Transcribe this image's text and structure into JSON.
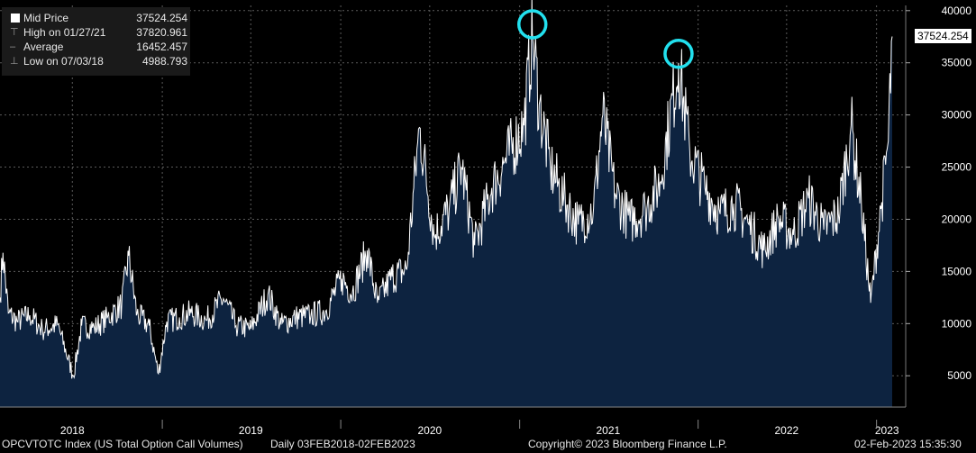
{
  "legend": {
    "rows": [
      {
        "label": "Mid Price",
        "value": "37524.254"
      },
      {
        "label": "High on 01/27/21",
        "value": "37820.961"
      },
      {
        "label": "Average",
        "value": "16452.457"
      },
      {
        "label": "Low on 07/03/18",
        "value": "4988.793"
      }
    ]
  },
  "last_value_label": "37524.254",
  "footer": {
    "ticker": "OPCVTOTC Index (US Total Option Call Volumes)",
    "range": "Daily 03FEB2018-02FEB2023",
    "copyright": "Copyright© 2023 Bloomberg Finance L.P.",
    "timestamp": "02-Feb-2023 15:35:30"
  },
  "colors": {
    "fill": "#0d2340",
    "line": "#ffffff",
    "grid": "#5a5a5a",
    "highlight_circle": "#22e0ee",
    "background": "#000000"
  },
  "chart_data": {
    "type": "area",
    "xlabel": "",
    "ylabel": "",
    "ylim": [
      2000,
      40500
    ],
    "y_ticks": [
      5000,
      10000,
      15000,
      20000,
      25000,
      30000,
      35000,
      40000
    ],
    "y_tick_labels": [
      "5000",
      "10000",
      "15000",
      "20000",
      "25000",
      "30000",
      "35000",
      "40000"
    ],
    "x_range": [
      "2018-02-03",
      "2023-02-02"
    ],
    "x_tick_labels": [
      "2018",
      "2019",
      "2020",
      "2021",
      "2022",
      "2023"
    ],
    "grid": true,
    "highlights": [
      "2021-01-27",
      "2021-11-22"
    ],
    "series": [
      {
        "name": "Mid Price",
        "points": [
          [
            "2018-02-03",
            12500
          ],
          [
            "2018-02-09",
            16800
          ],
          [
            "2018-02-20",
            11000
          ],
          [
            "2018-03-10",
            10200
          ],
          [
            "2018-04-05",
            10800
          ],
          [
            "2018-05-01",
            9400
          ],
          [
            "2018-06-01",
            9900
          ],
          [
            "2018-07-03",
            5000
          ],
          [
            "2018-07-20",
            9800
          ],
          [
            "2018-08-15",
            9600
          ],
          [
            "2018-09-10",
            10500
          ],
          [
            "2018-10-10",
            11800
          ],
          [
            "2018-10-24",
            16500
          ],
          [
            "2018-11-10",
            10900
          ],
          [
            "2018-12-05",
            9800
          ],
          [
            "2018-12-24",
            5200
          ],
          [
            "2019-01-10",
            10200
          ],
          [
            "2019-02-05",
            10600
          ],
          [
            "2019-03-01",
            11000
          ],
          [
            "2019-04-01",
            10300
          ],
          [
            "2019-05-06",
            12400
          ],
          [
            "2019-06-01",
            9800
          ],
          [
            "2019-07-01",
            9500
          ],
          [
            "2019-08-05",
            12800
          ],
          [
            "2019-09-01",
            9900
          ],
          [
            "2019-10-01",
            10600
          ],
          [
            "2019-11-01",
            10800
          ],
          [
            "2019-12-01",
            11200
          ],
          [
            "2020-01-03",
            14300
          ],
          [
            "2020-01-25",
            13000
          ],
          [
            "2020-02-24",
            17000
          ],
          [
            "2020-03-16",
            12000
          ],
          [
            "2020-04-15",
            14500
          ],
          [
            "2020-05-15",
            15200
          ],
          [
            "2020-06-10",
            28800
          ],
          [
            "2020-07-10",
            18500
          ],
          [
            "2020-08-10",
            21000
          ],
          [
            "2020-09-04",
            25000
          ],
          [
            "2020-10-01",
            17500
          ],
          [
            "2020-11-05",
            23000
          ],
          [
            "2020-12-01",
            25500
          ],
          [
            "2021-01-10",
            29000
          ],
          [
            "2021-01-27",
            37820
          ],
          [
            "2021-02-10",
            31000
          ],
          [
            "2021-03-05",
            25000
          ],
          [
            "2021-04-01",
            22000
          ],
          [
            "2021-05-01",
            19500
          ],
          [
            "2021-06-01",
            21000
          ],
          [
            "2021-06-20",
            30000
          ],
          [
            "2021-07-15",
            22500
          ],
          [
            "2021-08-15",
            19800
          ],
          [
            "2021-09-15",
            21000
          ],
          [
            "2021-10-15",
            23500
          ],
          [
            "2021-11-22",
            35000
          ],
          [
            "2021-12-15",
            26500
          ],
          [
            "2022-01-15",
            23000
          ],
          [
            "2022-02-15",
            20500
          ],
          [
            "2022-03-15",
            21500
          ],
          [
            "2022-04-15",
            19500
          ],
          [
            "2022-05-15",
            17000
          ],
          [
            "2022-06-15",
            20000
          ],
          [
            "2022-07-15",
            18500
          ],
          [
            "2022-08-15",
            22000
          ],
          [
            "2022-09-15",
            19000
          ],
          [
            "2022-10-15",
            20500
          ],
          [
            "2022-11-10",
            29000
          ],
          [
            "2022-12-01",
            21500
          ],
          [
            "2022-12-20",
            12000
          ],
          [
            "2023-01-10",
            21000
          ],
          [
            "2023-01-25",
            27500
          ],
          [
            "2023-02-02",
            37524
          ]
        ]
      }
    ]
  }
}
